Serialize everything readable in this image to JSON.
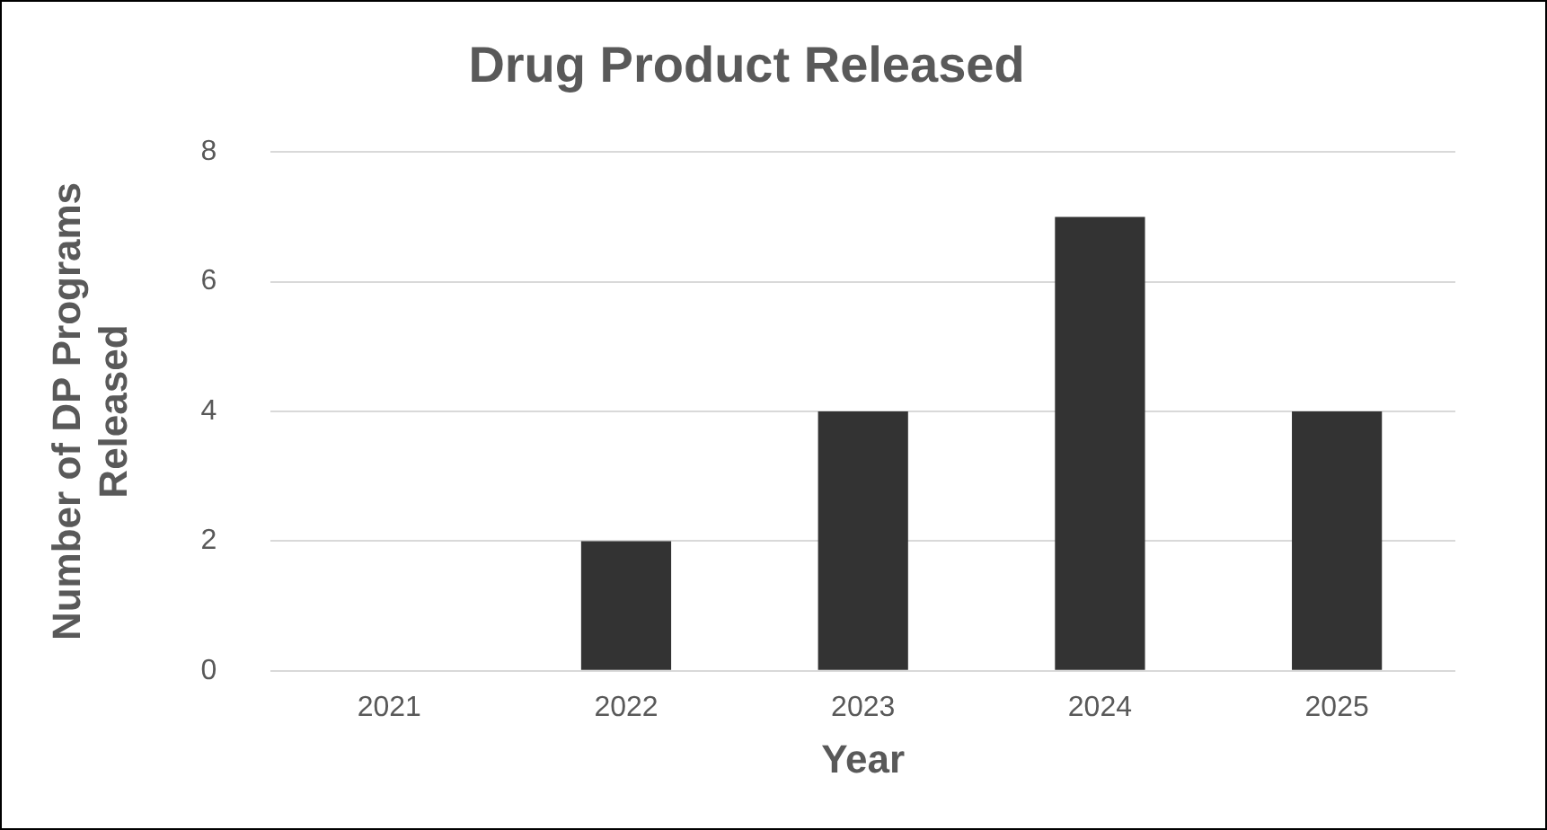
{
  "chart_data": {
    "type": "bar",
    "title": "Drug Product Released",
    "xlabel": "Year",
    "ylabel": "Number of DP Programs Released",
    "categories": [
      "2021",
      "2022",
      "2023",
      "2024",
      "2025"
    ],
    "values": [
      0,
      2,
      4,
      7,
      4
    ],
    "color": "#333333",
    "ylim": [
      0,
      8
    ],
    "yticks": [
      0,
      2,
      4,
      6,
      8
    ],
    "grid": "y"
  }
}
